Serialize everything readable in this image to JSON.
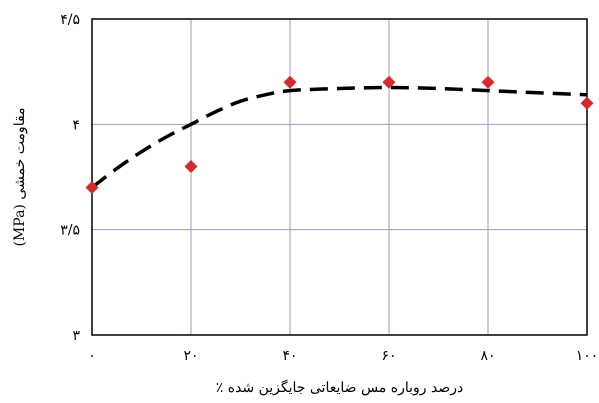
{
  "chart_data": {
    "type": "scatter",
    "xlabel": "درصد روباره مس ضایعاتی جایگزین شده ٪",
    "ylabel": "مقاومت خمشی (MPa)",
    "xlim": [
      0,
      100
    ],
    "ylim": [
      3,
      4.5
    ],
    "grid": true,
    "x_ticks": [
      {
        "value": 0,
        "label": "۰"
      },
      {
        "value": 20,
        "label": "۲۰"
      },
      {
        "value": 40,
        "label": "۴۰"
      },
      {
        "value": 60,
        "label": "۶۰"
      },
      {
        "value": 80,
        "label": "۸۰"
      },
      {
        "value": 100,
        "label": "۱۰۰"
      }
    ],
    "y_ticks": [
      {
        "value": 3,
        "label": "۳"
      },
      {
        "value": 3.5,
        "label": "۳/۵"
      },
      {
        "value": 4,
        "label": "۴"
      },
      {
        "value": 4.5,
        "label": "۴/۵"
      }
    ],
    "series": [
      {
        "marker": "diamond",
        "color": "#d42a2a",
        "x": [
          0,
          20,
          40,
          60,
          80,
          100
        ],
        "y": [
          3.7,
          3.8,
          4.2,
          4.2,
          4.2,
          4.1
        ]
      },
      {
        "style": "dashed-curve",
        "color": "#000000",
        "x": [
          0,
          5,
          10,
          15,
          20,
          25,
          30,
          35,
          40,
          50,
          60,
          70,
          80,
          90,
          100
        ],
        "y": [
          3.7,
          3.79,
          3.87,
          3.94,
          4.0,
          4.06,
          4.11,
          4.14,
          4.16,
          4.17,
          4.175,
          4.17,
          4.16,
          4.15,
          4.14
        ]
      }
    ]
  }
}
